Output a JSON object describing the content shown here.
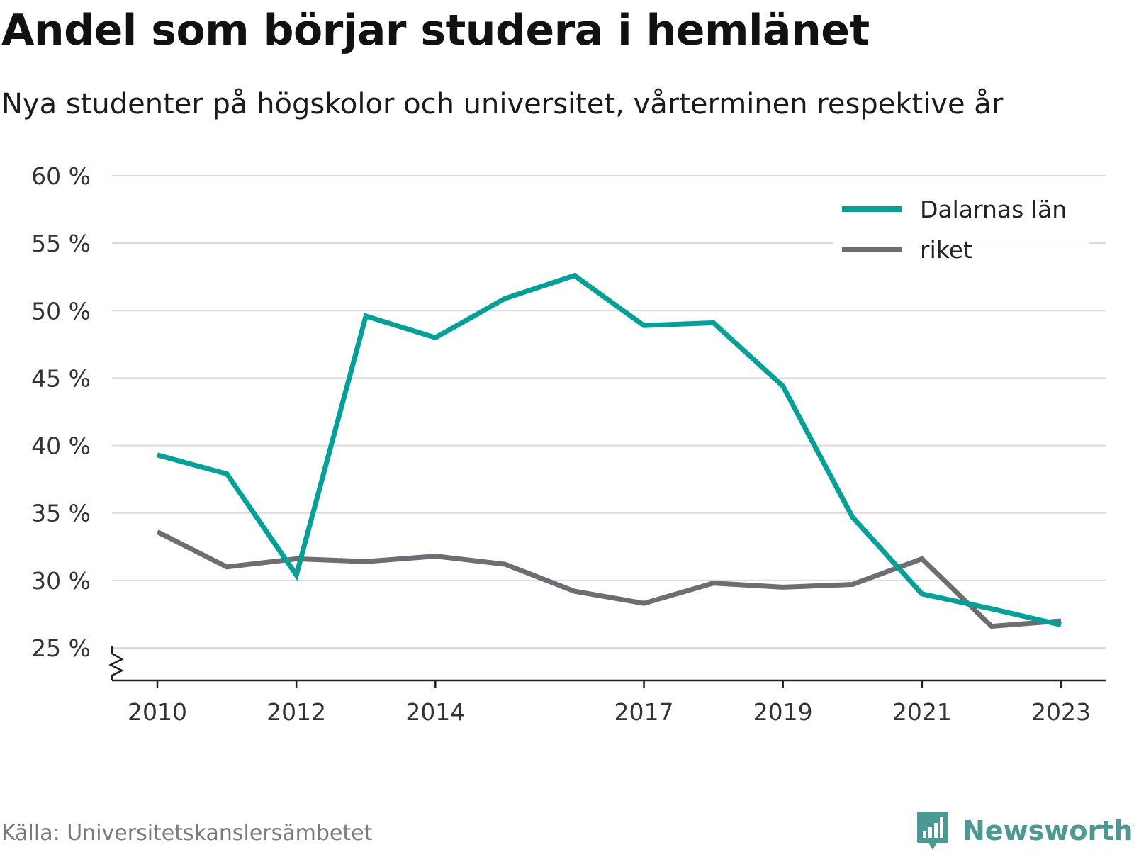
{
  "header": {
    "title": "Andel som börjar studera i hemlänet",
    "subtitle": "Nya studenter på högskolor och universitet, vårterminen respektive år"
  },
  "footer": {
    "source": "Källa: Universitetskanslersämbetet",
    "brand": "Newsworthy",
    "brand_icon": "bar-chart-speech-bubble-icon",
    "brand_color": "#4a9a93"
  },
  "chart_data": {
    "type": "line",
    "title": "Andel som börjar studera i hemlänet",
    "subtitle": "Nya studenter på högskolor och universitet, vårterminen respektive år",
    "xlabel": "",
    "ylabel": "",
    "x": [
      2010,
      2011,
      2012,
      2013,
      2014,
      2015,
      2016,
      2017,
      2018,
      2019,
      2020,
      2021,
      2022,
      2023
    ],
    "x_tick_labels": [
      "2010",
      "2012",
      "2014",
      "2017",
      "2019",
      "2021",
      "2023"
    ],
    "y_tick_labels": [
      "25 %",
      "30 %",
      "35 %",
      "40 %",
      "45 %",
      "50 %",
      "55 %",
      "60 %"
    ],
    "y_ticks": [
      25,
      30,
      35,
      40,
      45,
      50,
      55,
      60
    ],
    "ylim": [
      25,
      60
    ],
    "y_axis_break": true,
    "grid": true,
    "legend_position": "top-right",
    "series": [
      {
        "name": "Dalarnas län",
        "color": "#00a198",
        "values": [
          39.3,
          37.9,
          30.4,
          49.6,
          48.0,
          50.9,
          52.6,
          48.9,
          49.1,
          44.4,
          34.7,
          29.0,
          27.9,
          26.7
        ]
      },
      {
        "name": "riket",
        "color": "#6e6d73",
        "values": [
          33.6,
          31.0,
          31.6,
          31.4,
          31.8,
          31.2,
          29.2,
          28.3,
          29.8,
          29.5,
          29.7,
          31.6,
          26.6,
          27.0
        ]
      }
    ]
  }
}
